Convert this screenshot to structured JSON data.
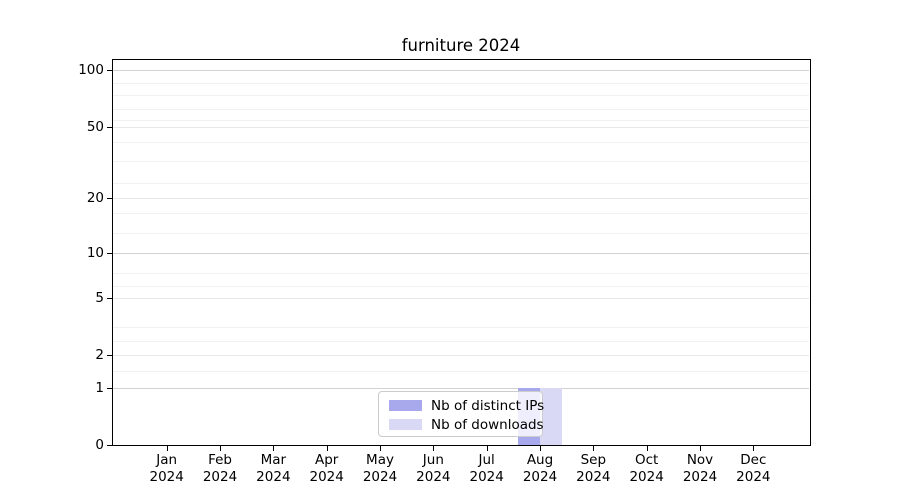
{
  "title": "furniture 2024",
  "legend": {
    "items": [
      {
        "label": "Nb of distinct IPs",
        "color": "#a8a8ed"
      },
      {
        "label": "Nb of downloads",
        "color": "#d9d9f6"
      }
    ]
  },
  "chart_data": {
    "type": "bar",
    "title": "furniture 2024",
    "categories": [
      "Jan 2024",
      "Feb 2024",
      "Mar 2024",
      "Apr 2024",
      "May 2024",
      "Jun 2024",
      "Jul 2024",
      "Aug 2024",
      "Sep 2024",
      "Oct 2024",
      "Nov 2024",
      "Dec 2024"
    ],
    "series": [
      {
        "name": "Nb of distinct IPs",
        "color": "#a8a8ed",
        "values": [
          0,
          0,
          0,
          0,
          0,
          0,
          0,
          1,
          0,
          0,
          0,
          0
        ]
      },
      {
        "name": "Nb of downloads",
        "color": "#d9d9f6",
        "values": [
          0,
          0,
          0,
          0,
          0,
          0,
          0,
          1,
          0,
          0,
          0,
          0
        ]
      }
    ],
    "xlabel": "",
    "ylabel": "",
    "yscale": "symlog",
    "y_ticks": [
      0,
      1,
      2,
      5,
      10,
      20,
      50,
      100
    ],
    "ylim": [
      0,
      130
    ],
    "grid": "horizontal",
    "legend_position": "lower center"
  }
}
